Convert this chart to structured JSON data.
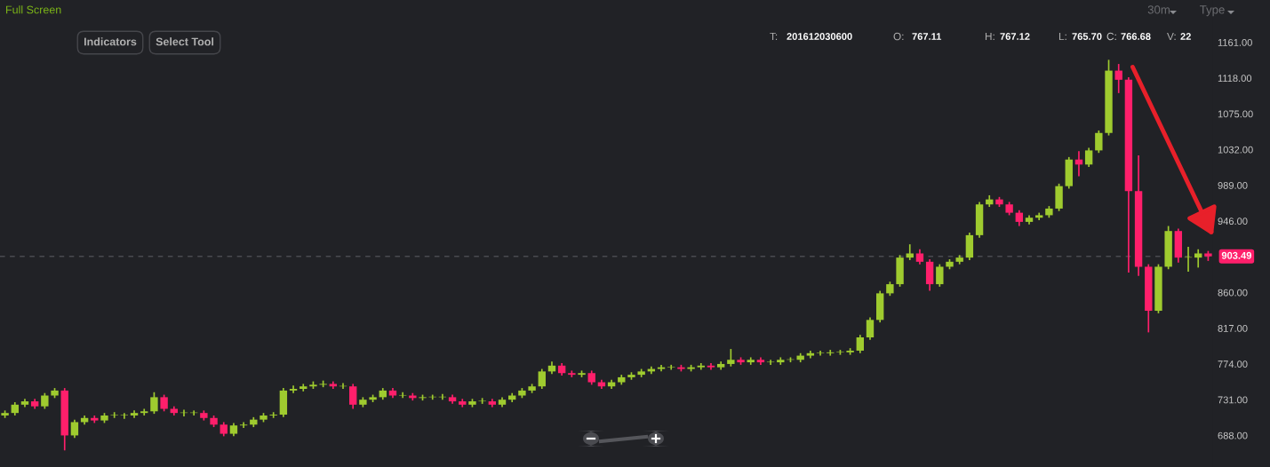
{
  "chart_data": {
    "type": "candlestick",
    "categories": [
      null,
      null,
      null,
      null,
      null,
      null,
      null,
      null,
      null,
      null,
      null,
      null,
      null,
      null,
      null,
      null,
      null,
      null,
      null,
      null,
      null,
      null,
      null,
      null,
      null,
      null,
      null,
      null,
      null,
      null,
      null,
      null,
      null,
      null,
      null,
      null,
      null,
      null,
      null,
      null,
      null,
      null,
      null,
      null,
      null,
      null,
      null,
      null,
      null,
      null,
      null,
      null,
      null,
      null,
      null,
      null,
      null,
      null,
      null,
      null,
      null,
      null,
      null,
      null,
      null,
      null,
      null,
      null,
      null,
      null,
      null,
      null,
      null,
      null,
      null,
      null,
      null,
      null,
      null,
      null,
      null,
      null,
      null,
      null,
      null,
      null,
      null,
      null,
      null,
      null,
      null,
      null,
      null,
      null,
      null,
      null,
      null,
      null,
      null,
      null,
      null,
      null,
      null,
      null,
      null,
      null,
      null,
      null,
      null,
      null,
      null,
      null,
      null,
      null,
      null,
      null,
      null,
      null,
      null,
      null,
      null,
      null
    ],
    "ohlc": [
      [
        712,
        718,
        709,
        715
      ],
      [
        715,
        728,
        712,
        725
      ],
      [
        725,
        732,
        722,
        729
      ],
      [
        729,
        732,
        720,
        723
      ],
      [
        723,
        739,
        720,
        736
      ],
      [
        736,
        745,
        733,
        742
      ],
      [
        742,
        745,
        670,
        688
      ],
      [
        688,
        707,
        685,
        704
      ],
      [
        704,
        712,
        701,
        709
      ],
      [
        709,
        712,
        703,
        706
      ],
      [
        706,
        715,
        703,
        712
      ],
      [
        712,
        716,
        709,
        712
      ],
      [
        712,
        715,
        708,
        712
      ],
      [
        712,
        718,
        709,
        715
      ],
      [
        715,
        720,
        712,
        717
      ],
      [
        717,
        740,
        714,
        734
      ],
      [
        734,
        737,
        717,
        720
      ],
      [
        720,
        723,
        712,
        715
      ],
      [
        715,
        719,
        711,
        715
      ],
      [
        715,
        718,
        712,
        715
      ],
      [
        715,
        718,
        706,
        709
      ],
      [
        709,
        712,
        698,
        701
      ],
      [
        701,
        704,
        687,
        690
      ],
      [
        690,
        703,
        687,
        700
      ],
      [
        700,
        704,
        697,
        701
      ],
      [
        701,
        710,
        698,
        707
      ],
      [
        707,
        715,
        704,
        712
      ],
      [
        712,
        716,
        709,
        713
      ],
      [
        713,
        745,
        710,
        742
      ],
      [
        742,
        748,
        739,
        744
      ],
      [
        744,
        750,
        741,
        747
      ],
      [
        747,
        753,
        744,
        749
      ],
      [
        749,
        754,
        746,
        750
      ],
      [
        750,
        753,
        744,
        747
      ],
      [
        747,
        751,
        744,
        747
      ],
      [
        747,
        750,
        720,
        725
      ],
      [
        725,
        734,
        722,
        731
      ],
      [
        731,
        737,
        728,
        734
      ],
      [
        734,
        745,
        731,
        742
      ],
      [
        742,
        745,
        733,
        736
      ],
      [
        736,
        740,
        733,
        736
      ],
      [
        736,
        739,
        730,
        733
      ],
      [
        733,
        737,
        730,
        734
      ],
      [
        734,
        737,
        731,
        734
      ],
      [
        734,
        738,
        731,
        734
      ],
      [
        734,
        737,
        726,
        729
      ],
      [
        729,
        732,
        722,
        725
      ],
      [
        725,
        732,
        722,
        729
      ],
      [
        729,
        733,
        726,
        729
      ],
      [
        729,
        732,
        722,
        725
      ],
      [
        725,
        734,
        722,
        731
      ],
      [
        731,
        739,
        728,
        736
      ],
      [
        736,
        745,
        733,
        742
      ],
      [
        742,
        750,
        739,
        747
      ],
      [
        747,
        768,
        744,
        765
      ],
      [
        765,
        777,
        762,
        772
      ],
      [
        772,
        775,
        760,
        763
      ],
      [
        763,
        766,
        758,
        761
      ],
      [
        761,
        766,
        758,
        763
      ],
      [
        763,
        766,
        749,
        752
      ],
      [
        752,
        755,
        744,
        747
      ],
      [
        747,
        755,
        744,
        752
      ],
      [
        752,
        761,
        749,
        758
      ],
      [
        758,
        764,
        755,
        761
      ],
      [
        761,
        768,
        758,
        765
      ],
      [
        765,
        771,
        762,
        768
      ],
      [
        768,
        773,
        765,
        770
      ],
      [
        770,
        773,
        767,
        770
      ],
      [
        770,
        773,
        765,
        768
      ],
      [
        768,
        773,
        765,
        770
      ],
      [
        770,
        775,
        767,
        772
      ],
      [
        772,
        775,
        767,
        770
      ],
      [
        770,
        777,
        767,
        774
      ],
      [
        774,
        792,
        771,
        779
      ],
      [
        779,
        782,
        773,
        776
      ],
      [
        776,
        782,
        773,
        779
      ],
      [
        779,
        782,
        773,
        776
      ],
      [
        776,
        779,
        773,
        776
      ],
      [
        776,
        782,
        773,
        779
      ],
      [
        779,
        782,
        776,
        779
      ],
      [
        779,
        787,
        776,
        784
      ],
      [
        784,
        790,
        781,
        787
      ],
      [
        787,
        790,
        784,
        787
      ],
      [
        787,
        791,
        784,
        788
      ],
      [
        788,
        791,
        785,
        788
      ],
      [
        788,
        793,
        785,
        790
      ],
      [
        790,
        809,
        787,
        806
      ],
      [
        806,
        830,
        803,
        827
      ],
      [
        827,
        862,
        824,
        859
      ],
      [
        859,
        873,
        856,
        870
      ],
      [
        870,
        905,
        867,
        902
      ],
      [
        902,
        918,
        899,
        907
      ],
      [
        907,
        912,
        894,
        897
      ],
      [
        897,
        900,
        862,
        870
      ],
      [
        870,
        894,
        867,
        891
      ],
      [
        891,
        900,
        888,
        897
      ],
      [
        897,
        905,
        894,
        902
      ],
      [
        902,
        932,
        899,
        929
      ],
      [
        929,
        969,
        926,
        966
      ],
      [
        966,
        977,
        963,
        972
      ],
      [
        972,
        975,
        963,
        966
      ],
      [
        966,
        969,
        953,
        956
      ],
      [
        956,
        959,
        940,
        945
      ],
      [
        945,
        953,
        942,
        950
      ],
      [
        950,
        956,
        947,
        953
      ],
      [
        953,
        964,
        950,
        961
      ],
      [
        961,
        991,
        958,
        988
      ],
      [
        988,
        1023,
        985,
        1020
      ],
      [
        1020,
        1030,
        1000,
        1014
      ],
      [
        1014,
        1034,
        1011,
        1031
      ],
      [
        1031,
        1055,
        1028,
        1052
      ],
      [
        1052,
        1140,
        1049,
        1127
      ],
      [
        1127,
        1135,
        1100,
        1116
      ],
      [
        1116,
        1119,
        884,
        982
      ],
      [
        982,
        1025,
        880,
        891
      ],
      [
        891,
        894,
        812,
        838
      ],
      [
        838,
        894,
        835,
        891
      ],
      [
        891,
        940,
        888,
        934
      ],
      [
        934,
        937,
        896,
        902
      ],
      [
        902,
        915,
        885,
        902
      ],
      [
        902,
        912,
        890,
        907
      ],
      [
        907,
        910,
        898,
        903.49
      ]
    ],
    "colors": [
      "#9fcb2f",
      "#9fcb2f",
      "#9fcb2f",
      "#ff1f6b",
      "#9fcb2f",
      "#9fcb2f",
      "#ff1f6b",
      "#9fcb2f",
      "#9fcb2f",
      "#ff1f6b",
      "#9fcb2f",
      "#9fcb2f",
      "#9fcb2f",
      "#9fcb2f",
      "#9fcb2f",
      "#9fcb2f",
      "#ff1f6b",
      "#ff1f6b",
      "#9fcb2f",
      "#9fcb2f",
      "#ff1f6b",
      "#ff1f6b",
      "#ff1f6b",
      "#9fcb2f",
      "#9fcb2f",
      "#9fcb2f",
      "#9fcb2f",
      "#9fcb2f",
      "#9fcb2f",
      "#9fcb2f",
      "#9fcb2f",
      "#9fcb2f",
      "#9fcb2f",
      "#ff1f6b",
      "#9fcb2f",
      "#ff1f6b",
      "#9fcb2f",
      "#9fcb2f",
      "#9fcb2f",
      "#ff1f6b",
      "#9fcb2f",
      "#ff1f6b",
      "#9fcb2f",
      "#9fcb2f",
      "#9fcb2f",
      "#ff1f6b",
      "#ff1f6b",
      "#9fcb2f",
      "#9fcb2f",
      "#ff1f6b",
      "#9fcb2f",
      "#9fcb2f",
      "#9fcb2f",
      "#9fcb2f",
      "#9fcb2f",
      "#9fcb2f",
      "#ff1f6b",
      "#ff1f6b",
      "#9fcb2f",
      "#ff1f6b",
      "#ff1f6b",
      "#9fcb2f",
      "#9fcb2f",
      "#9fcb2f",
      "#9fcb2f",
      "#9fcb2f",
      "#9fcb2f",
      "#9fcb2f",
      "#ff1f6b",
      "#9fcb2f",
      "#9fcb2f",
      "#ff1f6b",
      "#9fcb2f",
      "#9fcb2f",
      "#ff1f6b",
      "#9fcb2f",
      "#ff1f6b",
      "#9fcb2f",
      "#9fcb2f",
      "#9fcb2f",
      "#9fcb2f",
      "#9fcb2f",
      "#9fcb2f",
      "#9fcb2f",
      "#9fcb2f",
      "#9fcb2f",
      "#9fcb2f",
      "#9fcb2f",
      "#9fcb2f",
      "#9fcb2f",
      "#9fcb2f",
      "#9fcb2f",
      "#ff1f6b",
      "#ff1f6b",
      "#9fcb2f",
      "#9fcb2f",
      "#9fcb2f",
      "#9fcb2f",
      "#9fcb2f",
      "#9fcb2f",
      "#ff1f6b",
      "#ff1f6b",
      "#ff1f6b",
      "#9fcb2f",
      "#9fcb2f",
      "#9fcb2f",
      "#9fcb2f",
      "#9fcb2f",
      "#ff1f6b",
      "#9fcb2f",
      "#9fcb2f",
      "#9fcb2f",
      "#ff1f6b",
      "#ff1f6b",
      "#ff1f6b",
      "#ff1f6b",
      "#9fcb2f",
      "#9fcb2f",
      "#ff1f6b",
      "#9fcb2f",
      "#9fcb2f",
      "#ff1f6b"
    ],
    "ylim": [
      650,
      1212
    ],
    "yticks": [
      {
        "value": 688,
        "label": "688.00"
      },
      {
        "value": 731,
        "label": "731.00"
      },
      {
        "value": 774,
        "label": "774.00"
      },
      {
        "value": 817,
        "label": "817.00"
      },
      {
        "value": 860,
        "label": "860.00"
      },
      {
        "value": 946,
        "label": "946.00"
      },
      {
        "value": 989,
        "label": "989.00"
      },
      {
        "value": 1032,
        "label": "1032.00"
      },
      {
        "value": 1075,
        "label": "1075.00"
      },
      {
        "value": 1118,
        "label": "1118.00"
      },
      {
        "value": 1161,
        "label": "1161.00"
      }
    ],
    "tick_labels": "y",
    "ref_lines": [
      {
        "axis": "y",
        "value": 903.49,
        "label": "903.49",
        "color": "#4a4b50",
        "line_style": "dashed"
      }
    ],
    "annotations": [
      "Full Screen",
      "Indicators",
      "Select Tool",
      "30m",
      "Type",
      "T:",
      "201612030600",
      "O:",
      "767.11",
      "H:",
      "767.12",
      "L:",
      "765.70",
      "C:",
      "766.68",
      "V:",
      "22"
    ]
  }
}
